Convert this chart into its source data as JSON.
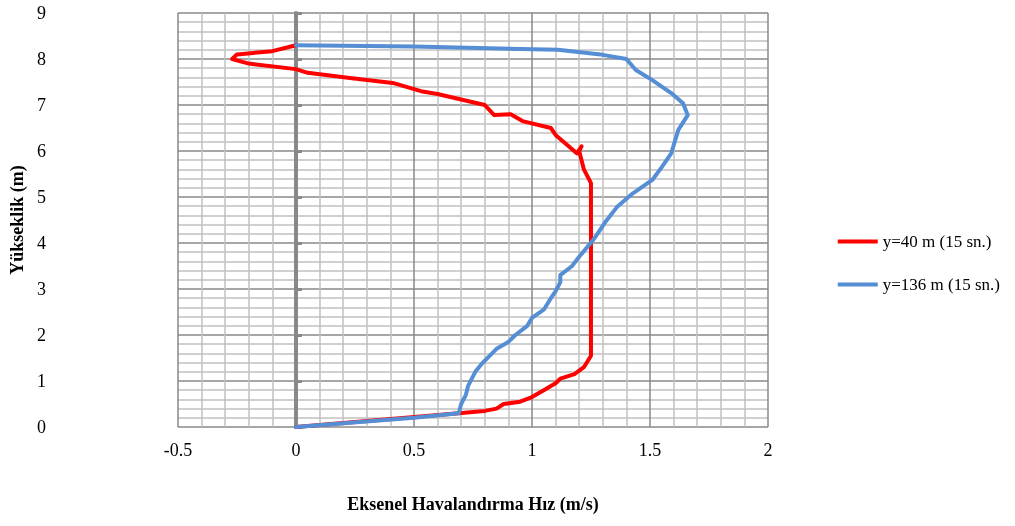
{
  "chart_data": {
    "type": "line",
    "xlabel": "Eksenel Havalandırma Hız (m/s)",
    "ylabel": "Yükseklik (m)",
    "xlim": [
      -0.5,
      2
    ],
    "xticks": [
      -0.5,
      0,
      0.5,
      1,
      1.5,
      2
    ],
    "ylim": [
      0,
      9
    ],
    "yticks": [
      0,
      1,
      2,
      3,
      4,
      5,
      6,
      7,
      8,
      9
    ],
    "grid": true,
    "legend": "right",
    "marker": "none",
    "line_style": "solid",
    "series": [
      {
        "name": "y=40 m (15 sn.)",
        "color": "#ff0000",
        "x": [
          0,
          0.69,
          0.8,
          0.85,
          0.88,
          0.95,
          1.0,
          1.05,
          1.1,
          1.12,
          1.18,
          1.22,
          1.25,
          1.25,
          1.22,
          1.2,
          1.21,
          1.19,
          1.1,
          1.08,
          0.96,
          0.91,
          0.84,
          0.8,
          0.6,
          0.53,
          0.41,
          0.22,
          0.05,
          0,
          -0.2,
          -0.27,
          -0.25,
          -0.1,
          0
        ],
        "values": [
          0,
          0.3,
          0.35,
          0.4,
          0.5,
          0.55,
          0.65,
          0.8,
          0.95,
          1.05,
          1.15,
          1.3,
          1.55,
          5.3,
          5.6,
          6.0,
          6.1,
          5.95,
          6.35,
          6.5,
          6.65,
          6.8,
          6.78,
          7.0,
          7.24,
          7.3,
          7.48,
          7.59,
          7.7,
          7.78,
          7.9,
          8.0,
          8.1,
          8.17,
          8.3
        ]
      },
      {
        "name": "y=136 m (15 sn.)",
        "color": "#558ed5",
        "x": [
          0,
          0.5,
          0.69,
          0.7,
          0.72,
          0.73,
          0.76,
          0.79,
          0.85,
          0.9,
          0.93,
          0.98,
          1.0,
          1.05,
          1.08,
          1.1,
          1.12,
          1.12,
          1.17,
          1.2,
          1.26,
          1.31,
          1.36,
          1.42,
          1.51,
          1.55,
          1.59,
          1.62,
          1.66,
          1.64,
          1.59,
          1.51,
          1.44,
          1.4,
          1.3,
          1.11,
          0.5,
          0
        ],
        "values": [
          0,
          0.2,
          0.3,
          0.5,
          0.7,
          0.9,
          1.2,
          1.39,
          1.7,
          1.85,
          2.0,
          2.2,
          2.37,
          2.55,
          2.8,
          2.95,
          3.15,
          3.3,
          3.5,
          3.7,
          4.07,
          4.45,
          4.78,
          5.05,
          5.37,
          5.65,
          5.95,
          6.46,
          6.78,
          7.04,
          7.26,
          7.54,
          7.76,
          8.0,
          8.09,
          8.2,
          8.27,
          8.3
        ]
      }
    ]
  }
}
